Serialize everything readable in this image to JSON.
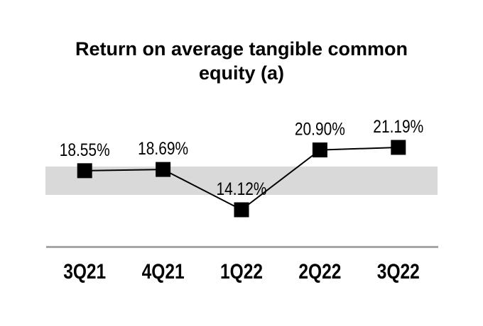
{
  "chart_data": {
    "type": "line",
    "title": "Return on average tangible common equity (a)",
    "title_lines": [
      "Return on average tangible common",
      "equity (a)"
    ],
    "categories": [
      "3Q21",
      "4Q21",
      "1Q22",
      "2Q22",
      "3Q22"
    ],
    "values": [
      18.55,
      18.69,
      14.12,
      20.9,
      21.19
    ],
    "data_labels": [
      "18.55%",
      "18.69%",
      "14.12%",
      "20.90%",
      "21.19%"
    ],
    "xlabel": "",
    "ylabel": "",
    "legend": "none",
    "grid": false,
    "marker_style": "filled-square",
    "estimated_band_value_range": [
      15.8,
      19.0
    ],
    "colors": {
      "series_line": "#000000",
      "marker": "#000000",
      "text": "#000000",
      "highlight_band": "#d9d9d9",
      "axis_line": "#a6a6a6",
      "background": "#ffffff"
    }
  }
}
